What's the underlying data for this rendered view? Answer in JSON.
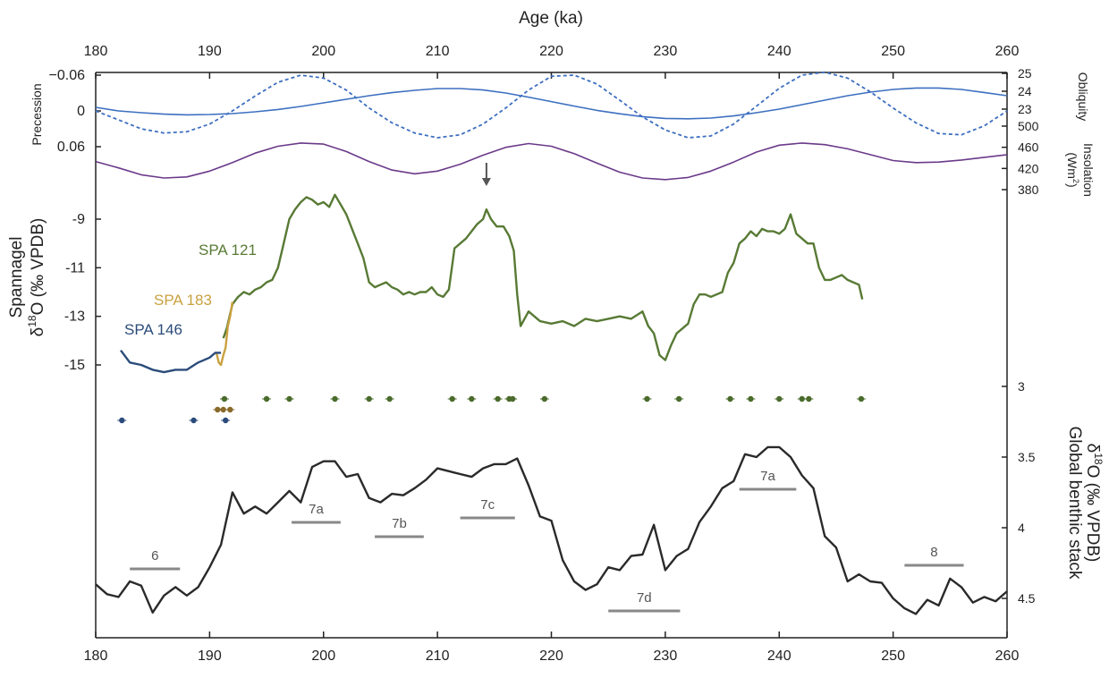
{
  "chart_data": {
    "type": "line",
    "xlabel": "Age (ka)",
    "xlim": [
      180,
      260
    ],
    "xticks": [
      "180",
      "190",
      "200",
      "210",
      "220",
      "230",
      "240",
      "250",
      "260"
    ],
    "panels": {
      "precession": {
        "label": "Precession",
        "ylim": [
          -0.06,
          0.06
        ],
        "ticks": [
          "−0.06",
          "0",
          "0.06"
        ],
        "color": "#3d6fc0",
        "x": [
          180,
          182,
          184,
          186,
          188,
          190,
          192,
          194,
          196,
          198,
          200,
          202,
          204,
          206,
          208,
          210,
          212,
          214,
          216,
          218,
          220,
          222,
          224,
          226,
          228,
          230,
          232,
          234,
          236,
          238,
          240,
          242,
          244,
          246,
          248,
          250,
          252,
          254,
          256,
          258,
          260
        ],
        "values": [
          0,
          0.015,
          0.03,
          0.037,
          0.035,
          0.022,
          0.0,
          -0.025,
          -0.048,
          -0.06,
          -0.055,
          -0.035,
          -0.005,
          0.02,
          0.037,
          0.045,
          0.04,
          0.022,
          -0.005,
          -0.035,
          -0.058,
          -0.06,
          -0.045,
          -0.018,
          0.01,
          0.032,
          0.045,
          0.042,
          0.022,
          -0.008,
          -0.038,
          -0.06,
          -0.065,
          -0.055,
          -0.032,
          -0.005,
          0.02,
          0.038,
          0.04,
          0.025,
          0.0
        ]
      },
      "obliquity": {
        "label": "Obliquity",
        "ticks": [
          "25",
          "24",
          "23"
        ],
        "ylim": [
          22.2,
          25
        ],
        "color": "#3d6fc0",
        "x": [
          180,
          182,
          184,
          186,
          188,
          190,
          192,
          194,
          196,
          198,
          200,
          202,
          204,
          206,
          208,
          210,
          212,
          214,
          216,
          218,
          220,
          222,
          224,
          226,
          228,
          230,
          232,
          234,
          236,
          238,
          240,
          242,
          244,
          246,
          248,
          250,
          252,
          254,
          256,
          258,
          260
        ],
        "values": [
          23.1,
          22.9,
          22.8,
          22.72,
          22.68,
          22.7,
          22.75,
          22.85,
          22.98,
          23.15,
          23.35,
          23.55,
          23.75,
          23.92,
          24.05,
          24.15,
          24.15,
          24.07,
          23.9,
          23.67,
          23.42,
          23.17,
          22.93,
          22.74,
          22.58,
          22.48,
          22.46,
          22.5,
          22.62,
          22.8,
          23.0,
          23.25,
          23.5,
          23.75,
          23.95,
          24.1,
          24.18,
          24.18,
          24.1,
          23.93,
          23.75
        ]
      },
      "insolation": {
        "label": "Insolation",
        "unit": "(Wm",
        "unit_sup": "2",
        "unit_end": ")",
        "ticks": [
          "500",
          "460",
          "420",
          "380"
        ],
        "ylim": [
          380,
          500
        ],
        "color": "#6b3a8a",
        "x": [
          180,
          182,
          184,
          186,
          188,
          190,
          192,
          194,
          196,
          198,
          200,
          202,
          204,
          206,
          208,
          210,
          212,
          214,
          216,
          218,
          220,
          222,
          224,
          226,
          228,
          230,
          232,
          234,
          236,
          238,
          240,
          242,
          244,
          246,
          248,
          250,
          252,
          254,
          256,
          258,
          260
        ],
        "values": [
          433,
          421,
          408,
          402,
          404,
          415,
          431,
          449,
          462,
          468,
          466,
          452,
          433,
          417,
          410,
          415,
          428,
          445,
          460,
          467,
          462,
          448,
          430,
          413,
          402,
          399,
          403,
          415,
          432,
          451,
          464,
          468,
          465,
          457,
          446,
          435,
          431,
          432,
          436,
          441,
          446
        ]
      },
      "spannagel": {
        "label_top": "Spannagel",
        "label_bottom_pre": "δ",
        "label_sup": "18",
        "label_bottom_post": "O (‰ VPDB)",
        "ticks": [
          "-9",
          "-11",
          "-13",
          "-15"
        ],
        "ylim": [
          -16,
          -8
        ],
        "arrow_age": 214.3,
        "series": [
          {
            "name": "SPA 121",
            "color": "#587a35",
            "x": [
              191.2,
              191.5,
              192,
              192.5,
              193,
              193.5,
              194,
              194.5,
              195,
              195.5,
              196,
              196.5,
              197,
              197.5,
              198,
              198.5,
              199,
              199.5,
              200,
              200.5,
              201,
              201.5,
              202,
              202.5,
              203,
              203.5,
              204,
              204.5,
              205,
              205.5,
              206,
              206.5,
              207,
              207.5,
              208,
              208.5,
              209,
              209.5,
              210,
              210.5,
              211,
              211.5,
              212,
              212.5,
              213,
              213.5,
              214,
              214.3,
              214.7,
              215.2,
              215.8,
              216.3,
              216.7,
              217,
              217.3,
              218,
              219,
              220,
              221,
              222,
              223,
              224,
              225,
              226,
              227,
              228,
              228.5,
              229,
              229.5,
              230,
              230.5,
              231,
              231.5,
              232,
              232.5,
              233,
              233.5,
              234,
              234.5,
              235,
              235.5,
              236,
              236.5,
              237,
              237.5,
              238,
              238.5,
              239,
              239.5,
              240,
              240.5,
              241,
              241.5,
              242,
              242.5,
              243,
              243.5,
              244,
              244.5,
              245,
              245.5,
              246,
              246.5,
              247,
              247.3
            ],
            "values": [
              -13.9,
              -13.5,
              -12.5,
              -12.2,
              -12.0,
              -12.1,
              -11.9,
              -11.8,
              -11.6,
              -11.5,
              -11.0,
              -10.0,
              -9.0,
              -8.6,
              -8.3,
              -8.1,
              -8.2,
              -8.4,
              -8.3,
              -8.5,
              -8.0,
              -8.4,
              -8.8,
              -9.4,
              -10.0,
              -10.6,
              -11.6,
              -11.8,
              -11.7,
              -11.6,
              -11.8,
              -11.9,
              -12.1,
              -12.0,
              -12.1,
              -12.0,
              -12.0,
              -11.8,
              -12.1,
              -12.2,
              -11.9,
              -10.2,
              -10.0,
              -9.8,
              -9.5,
              -9.2,
              -9.0,
              -8.6,
              -9.0,
              -9.3,
              -9.3,
              -9.7,
              -10.3,
              -12.1,
              -13.4,
              -12.8,
              -13.2,
              -13.3,
              -13.2,
              -13.4,
              -13.1,
              -13.2,
              -13.1,
              -13.0,
              -13.1,
              -12.8,
              -13.4,
              -13.7,
              -14.6,
              -14.8,
              -14.2,
              -13.7,
              -13.5,
              -13.3,
              -12.5,
              -12.1,
              -12.1,
              -12.2,
              -12.1,
              -12.0,
              -11.2,
              -10.8,
              -10.0,
              -9.8,
              -9.5,
              -9.7,
              -9.4,
              -9.5,
              -9.5,
              -9.6,
              -9.4,
              -8.8,
              -9.6,
              -9.8,
              -10.0,
              -10.0,
              -11.0,
              -11.5,
              -11.5,
              -11.4,
              -11.3,
              -11.5,
              -11.6,
              -11.7,
              -12.3
            ]
          },
          {
            "name": "SPA 183",
            "color": "#c9a13f",
            "x": [
              190.6,
              190.8,
              191.0,
              191.2,
              191.4,
              191.6,
              191.8,
              192.0
            ],
            "values": [
              -14.5,
              -14.9,
              -15.0,
              -14.6,
              -14.3,
              -13.4,
              -13.0,
              -12.4
            ]
          },
          {
            "name": "SPA 146",
            "color": "#2b4b7a",
            "x": [
              182.2,
              183,
              184,
              185,
              186,
              187,
              188,
              189,
              190,
              190.5,
              191
            ],
            "values": [
              -14.4,
              -14.9,
              -15.0,
              -15.2,
              -15.3,
              -15.2,
              -15.2,
              -14.9,
              -14.7,
              -14.5,
              -14.5
            ]
          }
        ]
      },
      "dating": {
        "spa121": {
          "color": "#4a6b2c",
          "points": [
            191.3,
            195.0,
            197.0,
            201.0,
            204.0,
            205.8,
            211.3,
            213.0,
            215.3,
            216.3,
            216.6,
            219.4,
            228.4,
            231.2,
            235.7,
            237.5,
            240.0,
            242.0,
            242.6,
            247.2
          ]
        },
        "spa183": {
          "color": "#8a6a2a",
          "points": [
            190.7,
            191.2,
            191.8
          ]
        },
        "spa146": {
          "color": "#2b4b7a",
          "points": [
            182.3,
            188.6,
            191.4
          ]
        }
      },
      "benthic": {
        "label_top": "Global benthic stack",
        "label_bottom_pre": "δ",
        "label_sup": "18",
        "label_bottom_post": "O (‰ VPDB)",
        "ticks": [
          "3",
          "3.5",
          "4",
          "4.5"
        ],
        "ylim": [
          4.8,
          3.0
        ],
        "color": "#2a2a2a",
        "x": [
          180,
          181,
          182,
          183,
          184,
          185,
          186,
          187,
          188,
          189,
          190,
          191,
          192,
          193,
          194,
          195,
          196,
          197,
          198,
          199,
          200,
          201,
          202,
          203,
          204,
          205,
          206,
          207,
          208,
          209,
          210,
          211,
          212,
          213,
          214,
          215,
          216,
          217,
          218,
          219,
          220,
          221,
          222,
          223,
          224,
          225,
          226,
          227,
          228,
          229,
          230,
          231,
          232,
          233,
          234,
          235,
          236,
          237,
          238,
          239,
          240,
          241,
          242,
          243,
          244,
          245,
          246,
          247,
          248,
          249,
          250,
          251,
          252,
          253,
          254,
          255,
          256,
          257,
          258,
          259,
          260
        ],
        "values": [
          4.4,
          4.47,
          4.49,
          4.38,
          4.41,
          4.6,
          4.48,
          4.42,
          4.48,
          4.42,
          4.28,
          4.12,
          3.75,
          3.9,
          3.85,
          3.9,
          3.82,
          3.74,
          3.82,
          3.57,
          3.53,
          3.53,
          3.64,
          3.62,
          3.79,
          3.82,
          3.76,
          3.77,
          3.72,
          3.66,
          3.58,
          3.6,
          3.62,
          3.64,
          3.58,
          3.55,
          3.55,
          3.51,
          3.7,
          3.92,
          3.95,
          4.23,
          4.38,
          4.44,
          4.4,
          4.28,
          4.3,
          4.2,
          4.19,
          3.98,
          4.3,
          4.2,
          4.15,
          3.96,
          3.85,
          3.72,
          3.67,
          3.48,
          3.5,
          3.43,
          3.43,
          3.5,
          3.63,
          3.72,
          4.06,
          4.14,
          4.38,
          4.33,
          4.38,
          4.39,
          4.5,
          4.57,
          4.61,
          4.51,
          4.55,
          4.36,
          4.42,
          4.53,
          4.49,
          4.52,
          4.45
        ]
      },
      "stages": [
        {
          "label": "6",
          "from": 183.0,
          "to": 187.4
        },
        {
          "label": "7a",
          "from": 197.2,
          "to": 201.5
        },
        {
          "label": "7b",
          "from": 204.5,
          "to": 208.8
        },
        {
          "label": "7c",
          "from": 212.0,
          "to": 216.8
        },
        {
          "label": "7d",
          "from": 225.0,
          "to": 231.3
        },
        {
          "label": "7a",
          "from": 236.5,
          "to": 241.5
        },
        {
          "label": "8",
          "from": 251.0,
          "to": 256.2
        }
      ]
    }
  }
}
